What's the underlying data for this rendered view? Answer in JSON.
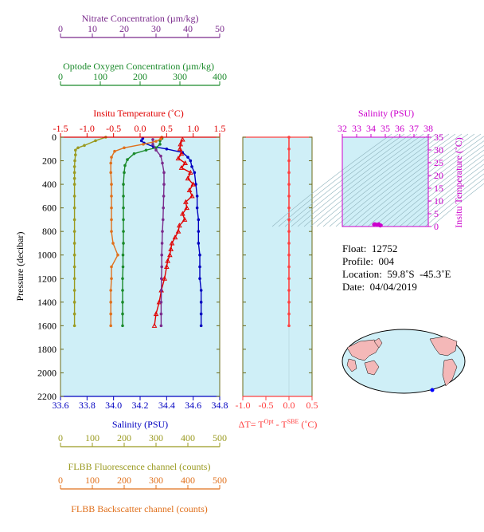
{
  "colors": {
    "panel_bg": "#cfeff7",
    "nitrate": "#7a2a8c",
    "oxygen": "#1a8a2a",
    "temperature": "#e00000",
    "salinity": "#0000c0",
    "fluorescence": "#9a9a20",
    "backscatter": "#e0701c",
    "delta_t": "#ff4040",
    "ts": "#cc00cc",
    "axis_olive": "#6b6b1a"
  },
  "axes": {
    "nitrate": {
      "label": "Nitrate Concentration (µm/kg)",
      "ticks": [
        "0",
        "10",
        "20",
        "30",
        "40",
        "50"
      ]
    },
    "oxygen": {
      "label": "Optode Oxygen Concentration (µm/kg)",
      "ticks": [
        "0",
        "100",
        "200",
        "300",
        "400"
      ]
    },
    "temperature": {
      "label": "Insitu Temperature (˚C)",
      "ticks": [
        "-1.5",
        "-1.0",
        "-0.5",
        "0.0",
        "0.5",
        "1.0",
        "1.5"
      ]
    },
    "pressure": {
      "label": "Pressure (decibar)",
      "ticks": [
        "0",
        "200",
        "400",
        "600",
        "800",
        "1000",
        "1200",
        "1400",
        "1600",
        "1800",
        "2000",
        "2200"
      ]
    },
    "salinity": {
      "label": "Salinity (PSU)",
      "ticks": [
        "33.6",
        "33.8",
        "34.0",
        "34.2",
        "34.4",
        "34.6",
        "34.8"
      ]
    },
    "fluorescence": {
      "label": "FLBB Fluorescence channel (counts)",
      "ticks": [
        "0",
        "100",
        "200",
        "300",
        "400",
        "500"
      ]
    },
    "backscatter": {
      "label": "FLBB Backscatter channel (counts)",
      "ticks": [
        "0",
        "100",
        "200",
        "300",
        "400",
        "500"
      ]
    },
    "delta_t": {
      "label_main": "ΔT= T",
      "sup1": "Opt",
      "label_mid": " - T",
      "sup2": "SBE",
      "label_end": " (˚C)",
      "ticks": [
        "-1.0",
        "-0.5",
        "0.0",
        "0.5"
      ]
    },
    "ts_salinity": {
      "label": "Salinity (PSU)",
      "ticks": [
        "32",
        "33",
        "34",
        "35",
        "36",
        "37",
        "38"
      ]
    },
    "ts_temperature": {
      "label": "Insitu Temperature (˚C)",
      "ticks": [
        "0",
        "5",
        "10",
        "15",
        "20",
        "25",
        "30",
        "35"
      ]
    }
  },
  "info": {
    "float": "Float:  12752",
    "profile": "Profile:  004",
    "location": "Location:  59.8˚S  -45.3˚E",
    "date": "Date:  04/04/2019"
  },
  "chart_data": [
    {
      "type": "line",
      "panel": "main profile",
      "ylim": [
        0,
        2200
      ],
      "series": [
        {
          "name": "salinity",
          "x_axis": "salinity",
          "xlim": [
            33.6,
            34.8
          ],
          "points": [
            [
              34.22,
              10
            ],
            [
              34.21,
              30
            ],
            [
              34.23,
              50
            ],
            [
              34.3,
              80
            ],
            [
              34.4,
              100
            ],
            [
              34.52,
              130
            ],
            [
              34.56,
              170
            ],
            [
              34.58,
              200
            ],
            [
              34.59,
              250
            ],
            [
              34.61,
              300
            ],
            [
              34.62,
              400
            ],
            [
              34.63,
              500
            ],
            [
              34.63,
              600
            ],
            [
              34.64,
              700
            ],
            [
              34.64,
              800
            ],
            [
              34.64,
              900
            ],
            [
              34.65,
              1000
            ],
            [
              34.65,
              1100
            ],
            [
              34.65,
              1200
            ],
            [
              34.66,
              1300
            ],
            [
              34.66,
              1400
            ],
            [
              34.66,
              1500
            ],
            [
              34.66,
              1600
            ]
          ]
        },
        {
          "name": "temperature",
          "x_axis": "temperature",
          "xlim": [
            -1.5,
            1.5
          ],
          "points": [
            [
              0.8,
              20
            ],
            [
              0.76,
              60
            ],
            [
              0.75,
              100
            ],
            [
              0.78,
              140
            ],
            [
              0.72,
              180
            ],
            [
              0.85,
              220
            ],
            [
              0.78,
              260
            ],
            [
              0.95,
              300
            ],
            [
              0.9,
              350
            ],
            [
              1.0,
              400
            ],
            [
              0.93,
              450
            ],
            [
              0.98,
              500
            ],
            [
              0.86,
              550
            ],
            [
              0.88,
              600
            ],
            [
              0.8,
              650
            ],
            [
              0.84,
              700
            ],
            [
              0.74,
              750
            ],
            [
              0.72,
              800
            ],
            [
              0.66,
              850
            ],
            [
              0.6,
              900
            ],
            [
              0.58,
              950
            ],
            [
              0.56,
              1000
            ],
            [
              0.52,
              1050
            ],
            [
              0.5,
              1100
            ],
            [
              0.46,
              1200
            ],
            [
              0.4,
              1300
            ],
            [
              0.36,
              1400
            ],
            [
              0.3,
              1500
            ],
            [
              0.27,
              1600
            ]
          ]
        },
        {
          "name": "oxygen",
          "x_axis": "oxygen",
          "xlim": [
            0,
            400
          ],
          "points": [
            [
              255,
              10
            ],
            [
              250,
              30
            ],
            [
              250,
              60
            ],
            [
              240,
              90
            ],
            [
              215,
              110
            ],
            [
              185,
              140
            ],
            [
              168,
              190
            ],
            [
              162,
              240
            ],
            [
              160,
              300
            ],
            [
              158,
              400
            ],
            [
              158,
              500
            ],
            [
              158,
              600
            ],
            [
              158,
              700
            ],
            [
              158,
              800
            ],
            [
              158,
              900
            ],
            [
              157,
              1000
            ],
            [
              157,
              1100
            ],
            [
              156,
              1200
            ],
            [
              156,
              1300
            ],
            [
              156,
              1400
            ],
            [
              156,
              1500
            ],
            [
              156,
              1600
            ]
          ]
        },
        {
          "name": "nitrate",
          "x_axis": "nitrate",
          "xlim": [
            0,
            50
          ],
          "points": [
            [
              29.0,
              20
            ],
            [
              29.0,
              60
            ],
            [
              30.0,
              110
            ],
            [
              31.5,
              160
            ],
            [
              32.0,
              220
            ],
            [
              32.5,
              300
            ],
            [
              32.5,
              400
            ],
            [
              32.4,
              500
            ],
            [
              32.3,
              600
            ],
            [
              32.2,
              700
            ],
            [
              32.0,
              800
            ],
            [
              31.9,
              900
            ],
            [
              31.8,
              1000
            ],
            [
              31.8,
              1100
            ],
            [
              31.7,
              1200
            ],
            [
              31.7,
              1300
            ],
            [
              31.6,
              1400
            ],
            [
              31.6,
              1500
            ],
            [
              31.6,
              1600
            ]
          ]
        },
        {
          "name": "fluorescence",
          "x_axis": "fluorescence",
          "xlim": [
            0,
            500
          ],
          "points": [
            [
              142,
              0
            ],
            [
              110,
              30
            ],
            [
              75,
              70
            ],
            [
              55,
              90
            ],
            [
              47,
              110
            ],
            [
              47,
              150
            ],
            [
              45,
              200
            ],
            [
              44,
              250
            ],
            [
              44,
              300
            ],
            [
              44,
              350
            ],
            [
              44,
              400
            ],
            [
              44,
              500
            ],
            [
              44,
              600
            ],
            [
              44,
              700
            ],
            [
              44,
              800
            ],
            [
              44,
              900
            ],
            [
              44,
              1000
            ],
            [
              44,
              1100
            ],
            [
              44,
              1200
            ],
            [
              44,
              1300
            ],
            [
              44,
              1400
            ],
            [
              44,
              1500
            ],
            [
              44,
              1600
            ]
          ]
        },
        {
          "name": "backscatter",
          "x_axis": "backscatter",
          "xlim": [
            0,
            500
          ],
          "points": [
            [
              318,
              0
            ],
            [
              315,
              15
            ],
            [
              300,
              35
            ],
            [
              260,
              60
            ],
            [
              200,
              90
            ],
            [
              170,
              120
            ],
            [
              160,
              170
            ],
            [
              158,
              220
            ],
            [
              158,
              300
            ],
            [
              160,
              400
            ],
            [
              160,
              500
            ],
            [
              160,
              600
            ],
            [
              160,
              700
            ],
            [
              160,
              800
            ],
            [
              165,
              900
            ],
            [
              180,
              1000
            ],
            [
              160,
              1100
            ],
            [
              160,
              1200
            ],
            [
              158,
              1300
            ],
            [
              158,
              1400
            ],
            [
              158,
              1500
            ],
            [
              158,
              1600
            ]
          ]
        }
      ]
    },
    {
      "type": "line",
      "panel": "delta T",
      "xlim": [
        -1.0,
        0.5
      ],
      "ylim": [
        0,
        2200
      ],
      "series": [
        {
          "name": "delta_t",
          "points": [
            [
              0.0,
              0
            ],
            [
              0.0,
              100
            ],
            [
              0.0,
              200
            ],
            [
              0.0,
              300
            ],
            [
              0.0,
              400
            ],
            [
              0.0,
              500
            ],
            [
              0.0,
              600
            ],
            [
              0.0,
              700
            ],
            [
              0.0,
              800
            ],
            [
              0.0,
              900
            ],
            [
              0.0,
              1000
            ],
            [
              0.0,
              1100
            ],
            [
              0.0,
              1200
            ],
            [
              0.0,
              1300
            ],
            [
              0.0,
              1400
            ],
            [
              0.0,
              1500
            ],
            [
              0.0,
              1600
            ]
          ]
        }
      ]
    },
    {
      "type": "scatter",
      "panel": "T-S diagram",
      "xlim": [
        32,
        38
      ],
      "ylim": [
        0,
        35
      ],
      "series": [
        {
          "name": "ts",
          "points": [
            [
              34.2,
              0.8
            ],
            [
              34.3,
              0.9
            ],
            [
              34.4,
              0.8
            ],
            [
              34.5,
              0.7
            ],
            [
              34.6,
              0.6
            ],
            [
              34.65,
              0.3
            ],
            [
              34.7,
              0.5
            ],
            [
              34.25,
              1.0
            ],
            [
              34.55,
              1.0
            ]
          ]
        }
      ]
    }
  ]
}
